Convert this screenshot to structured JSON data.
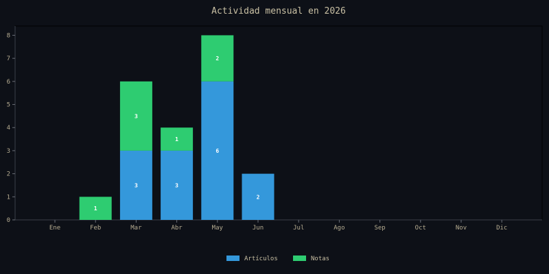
{
  "chart_data": {
    "type": "bar",
    "stacked": true,
    "title": "Actividad mensual en 2026",
    "xlabel": "",
    "ylabel": "",
    "categories": [
      "Ene",
      "Feb",
      "Mar",
      "Abr",
      "May",
      "Jun",
      "Jul",
      "Ago",
      "Sep",
      "Oct",
      "Nov",
      "Dic"
    ],
    "series": [
      {
        "name": "Artículos",
        "color": "#3498db",
        "values": [
          0,
          0,
          3,
          3,
          6,
          2,
          0,
          0,
          0,
          0,
          0,
          0
        ]
      },
      {
        "name": "Notas",
        "color": "#2ecc71",
        "values": [
          0,
          1,
          3,
          1,
          2,
          0,
          0,
          0,
          0,
          0,
          0,
          0
        ]
      }
    ],
    "ylim": [
      0,
      8.4
    ],
    "yticks": [
      0,
      1,
      2,
      3,
      4,
      5,
      6,
      7,
      8
    ],
    "grid": false,
    "legend_position": "bottom-center"
  }
}
